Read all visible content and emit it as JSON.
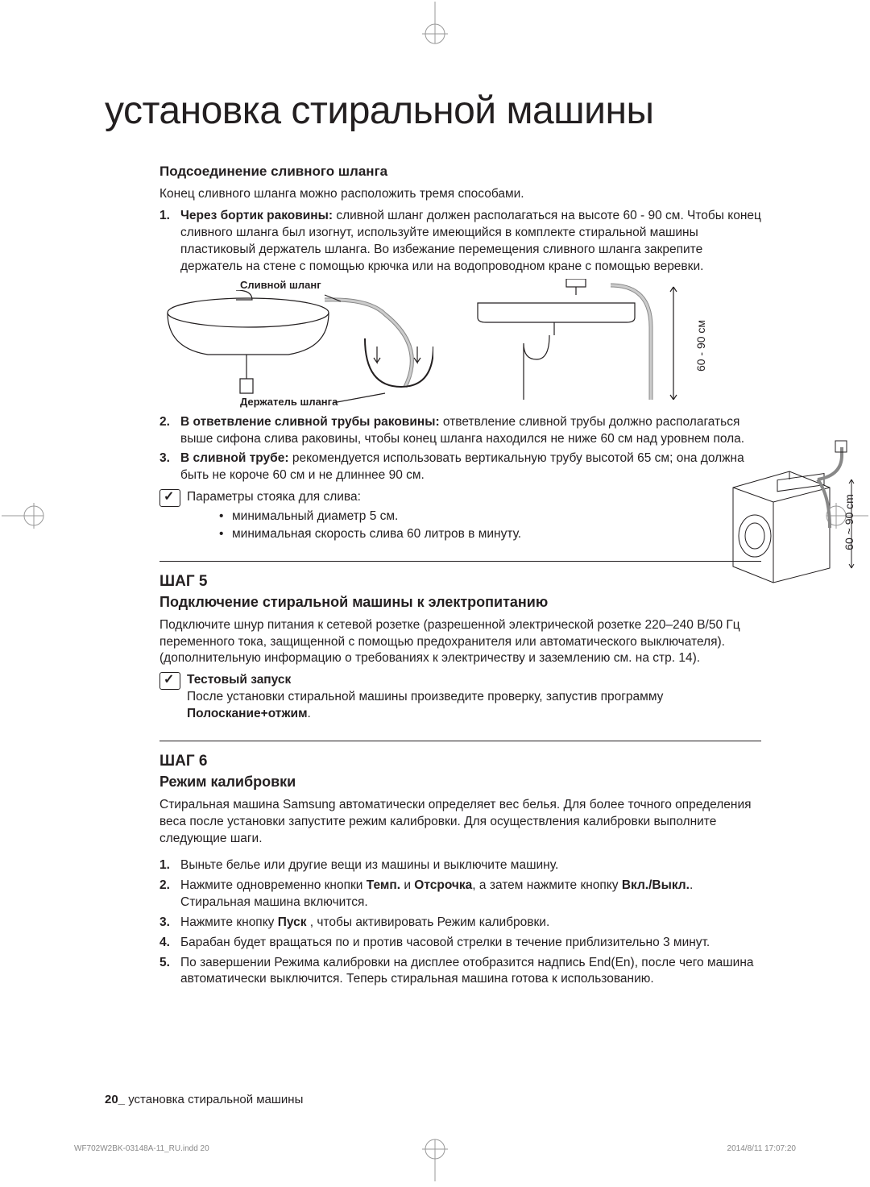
{
  "crop_color": "#9a9a9a",
  "title": "установка стиральной машины",
  "section_drain": {
    "heading": "Подсоединение сливного шланга",
    "intro": "Конец сливного шланга можно расположить тремя способами.",
    "items": [
      {
        "num": "1.",
        "bold": "Через бортик раковины:",
        "text": " сливной шланг должен располагаться на высоте 60 - 90 см. Чтобы конец сливного шланга был изогнут, используйте имеющийся в комплекте стиральной машины пластиковый держатель шланга. Во избежание перемещения сливного шланга закрепите держатель на стене с помощью крючка или на водопроводном кране с помощью веревки."
      },
      {
        "num": "2.",
        "bold": "В ответвление сливной трубы раковины:",
        "text": " ответвление сливной трубы должно располагаться выше сифона слива раковины, чтобы конец шланга находился не ниже 60 см над уровнем пола."
      },
      {
        "num": "3.",
        "bold": "В сливной трубе:",
        "text": " рекомендуется использовать вертикальную трубу высотой 65 см; она должна быть не короче 60 см и не длиннее 90 см."
      }
    ],
    "diagram_labels": {
      "hose": "Сливной шланг",
      "holder": "Держатель шланга",
      "height_cm": "60 - 90 см",
      "height_cm2": "60 ~ 90 cm"
    },
    "note_intro": "Параметры стояка для слива:",
    "note_bullets": [
      "минимальный диаметр 5 см.",
      "минимальная скорость слива 60 литров в минуту."
    ]
  },
  "step5": {
    "step": "ШАГ 5",
    "heading": "Подключение стиральной машины к электропитанию",
    "para": "Подключите шнур питания к сетевой розетке (разрешенной электрической розетке 220–240 В/50 Гц переменного тока, защищенной с помощью предохранителя или автоматического выключателя). (дополнительную информацию о требованиях к электричеству и заземлению см. на стр. 14).",
    "note_bold": "Тестовый запуск",
    "note_text_1": "После установки стиральной машины произведите проверку, запустив программу ",
    "note_bold_2": "Полоскание+отжим",
    "note_text_2": "."
  },
  "step6": {
    "step": "ШАГ 6",
    "heading": "Режим калибровки",
    "para": "Стиральная машина Samsung автоматически определяет вес белья. Для более точного определения веса после установки запустите режим калибровки. Для осуществления калибровки выполните следующие шаги.",
    "items": [
      {
        "num": "1.",
        "text": "Выньте белье или другие вещи из машины и выключите машину."
      },
      {
        "num": "2.",
        "text_parts": [
          "Нажмите одновременно кнопки ",
          {
            "b": "Темп."
          },
          " и ",
          {
            "b": "Отсрочка"
          },
          ", а затем нажмите кнопку ",
          {
            "b": "Вкл./Выкл."
          },
          ". Стиральная машина включится."
        ]
      },
      {
        "num": "3.",
        "text_parts": [
          "Нажмите кнопку ",
          {
            "b": "Пуск"
          },
          " , чтобы активировать Режим калибровки."
        ]
      },
      {
        "num": "4.",
        "text": "Барабан будет вращаться по и против часовой стрелки в течение приблизительно 3 минут."
      },
      {
        "num": "5.",
        "text": "По завершении Режима калибровки на дисплее отобразится надпись End(En), после чего машина автоматически выключится. Теперь стиральная машина готова к использованию."
      }
    ]
  },
  "footer": {
    "page": "20_",
    "label": " установка стиральной машины"
  },
  "print": {
    "file": "WF702W2BK-03148A-11_RU.indd   20",
    "date": "2014/8/11   17:07:20"
  }
}
